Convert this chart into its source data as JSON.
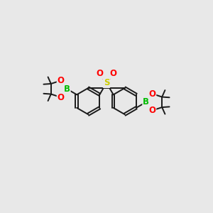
{
  "bg_color": "#e8e8e8",
  "bond_color": "#1a1a1a",
  "bond_width": 1.4,
  "S_color": "#cccc00",
  "O_color": "#ff0000",
  "B_color": "#00bb00",
  "font_size_atom": 8.5,
  "fig_width": 3.0,
  "fig_height": 3.0,
  "xlim": [
    0,
    12
  ],
  "ylim": [
    2,
    9
  ]
}
